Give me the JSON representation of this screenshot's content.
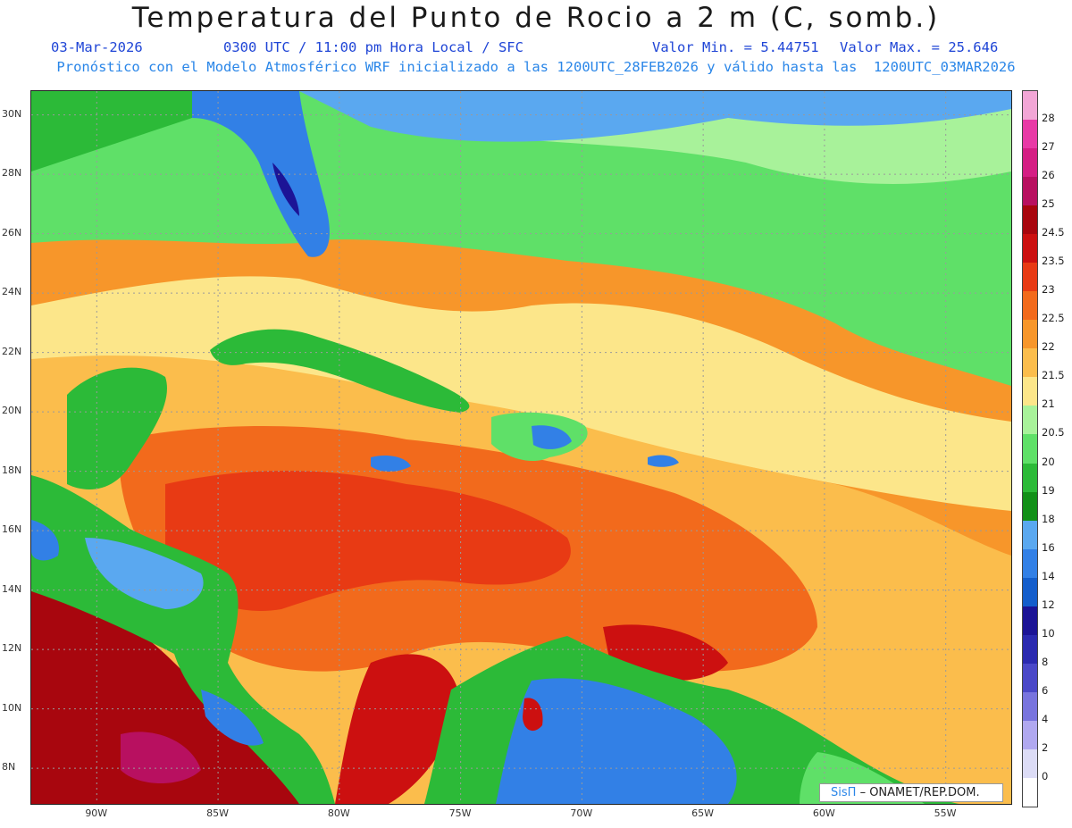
{
  "header": {
    "title": "Temperatura del Punto de Rocio a 2 m (C, somb.)",
    "date": "03-Mar-2026",
    "time": "0300 UTC / 11:00 pm Hora Local / SFC",
    "min": "Valor Min. = 5.44751",
    "max": "Valor Max. = 25.646",
    "model": "Pronóstico con el Modelo Atmosférico WRF inicializado a las 1200UTC_28FEB2026 y válido hasta las  1200UTC_03MAR2026"
  },
  "map": {
    "lon_range": [
      -92.7,
      -52.3
    ],
    "lat_range": [
      6.8,
      30.8
    ],
    "lat_ticks": [
      {
        "v": 30,
        "label": "30N"
      },
      {
        "v": 28,
        "label": "28N"
      },
      {
        "v": 26,
        "label": "26N"
      },
      {
        "v": 24,
        "label": "24N"
      },
      {
        "v": 22,
        "label": "22N"
      },
      {
        "v": 20,
        "label": "20N"
      },
      {
        "v": 18,
        "label": "18N"
      },
      {
        "v": 16,
        "label": "16N"
      },
      {
        "v": 14,
        "label": "14N"
      },
      {
        "v": 12,
        "label": "12N"
      },
      {
        "v": 10,
        "label": "10N"
      },
      {
        "v": 8,
        "label": "8N"
      }
    ],
    "lon_ticks": [
      {
        "v": -90,
        "label": "90W"
      },
      {
        "v": -85,
        "label": "85W"
      },
      {
        "v": -80,
        "label": "80W"
      },
      {
        "v": -75,
        "label": "75W"
      },
      {
        "v": -70,
        "label": "70W"
      },
      {
        "v": -65,
        "label": "65W"
      },
      {
        "v": -60,
        "label": "60W"
      },
      {
        "v": -55,
        "label": "55W"
      }
    ],
    "grid": true
  },
  "colorbar": {
    "levels": [
      {
        "label": "28",
        "color": "#f2a6d6"
      },
      {
        "label": "27",
        "color": "#e83aa6"
      },
      {
        "label": "26",
        "color": "#d51e84"
      },
      {
        "label": "25",
        "color": "#b81060"
      },
      {
        "label": "24.5",
        "color": "#a8060e"
      },
      {
        "label": "23.5",
        "color": "#cc1010"
      },
      {
        "label": "23",
        "color": "#e83a14"
      },
      {
        "label": "22.5",
        "color": "#f26a1c"
      },
      {
        "label": "22",
        "color": "#f7962a"
      },
      {
        "label": "21.5",
        "color": "#fbbd4c"
      },
      {
        "label": "21",
        "color": "#fce68a"
      },
      {
        "label": "20.5",
        "color": "#a8f29a"
      },
      {
        "label": "20",
        "color": "#5fe068"
      },
      {
        "label": "19",
        "color": "#2cba38"
      },
      {
        "label": "18",
        "color": "#129018"
      },
      {
        "label": "16",
        "color": "#5aa8f0"
      },
      {
        "label": "14",
        "color": "#3280e6"
      },
      {
        "label": "12",
        "color": "#145ecc"
      },
      {
        "label": "10",
        "color": "#1c1496"
      },
      {
        "label": "8",
        "color": "#2b2ab0"
      },
      {
        "label": "6",
        "color": "#4a48c8"
      },
      {
        "label": "4",
        "color": "#7874de"
      },
      {
        "label": "2",
        "color": "#b0a8f0"
      },
      {
        "label": "0",
        "color": "#dcdcf6"
      }
    ],
    "bottom_color": "#ffffff"
  },
  "credit": {
    "logo": "SisΠ",
    "org": "– ONAMET/REP.DOM."
  },
  "colors": {
    "ocean_north": "#5fe068",
    "ocean_mid": "#fbbd4c",
    "ocean_warm": "#f26a1c",
    "ocean_hot": "#cc1010",
    "pacific": "#a8060e",
    "land_green": "#2cba38",
    "land_blue": "#3280e6"
  }
}
